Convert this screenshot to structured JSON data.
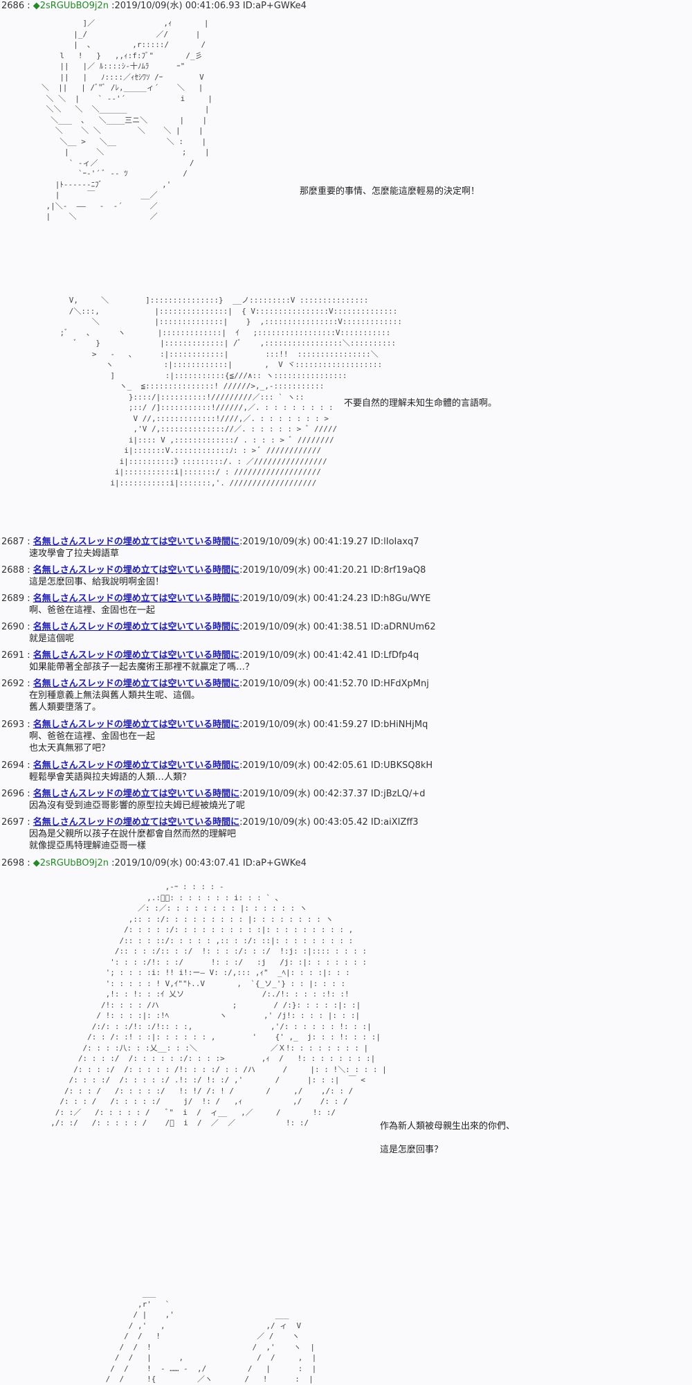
{
  "posts": [
    {
      "num": "2686",
      "trip": "◆2sRGUbBO9j2n",
      "date": "2019/10/09(水) 00:41:06.93",
      "id": "ID:aP+GWKe4",
      "body": []
    },
    {
      "num": "2687",
      "name": "名無しさんスレッドの埋め立ては空いている時間に",
      "date": "2019/10/09(水) 00:41:19.27",
      "id": "ID:lIoIaxq7",
      "body": [
        "速攻學會了拉夫姆語草"
      ]
    },
    {
      "num": "2688",
      "name": "名無しさんスレッドの埋め立ては空いている時間に",
      "date": "2019/10/09(水) 00:41:20.21",
      "id": "ID:8rf19aQ8",
      "body": [
        "這是怎麽回事、給我說明啊金固！"
      ]
    },
    {
      "num": "2689",
      "name": "名無しさんスレッドの埋め立ては空いている時間に",
      "date": "2019/10/09(水) 00:41:24.23",
      "id": "ID:h8Gu/WYE",
      "body": [
        "啊、爸爸在這裡、金固也在一起"
      ]
    },
    {
      "num": "2690",
      "name": "名無しさんスレッドの埋め立ては空いている時間に",
      "date": "2019/10/09(水) 00:41:38.51",
      "id": "ID:aDRNUm62",
      "body": [
        "就是這個呢"
      ]
    },
    {
      "num": "2691",
      "name": "名無しさんスレッドの埋め立ては空いている時間に",
      "date": "2019/10/09(水) 00:41:42.41",
      "id": "ID:LfDfp4q",
      "body": [
        "如果能帶著全部孩子一起去魔術王那裡不就贏定了嗎…？"
      ]
    },
    {
      "num": "2692",
      "name": "名無しさんスレッドの埋め立ては空いている時間に",
      "date": "2019/10/09(水) 00:41:52.70",
      "id": "ID:HFdXpMnj",
      "body": [
        "在別種意義上無法與舊人類共生呢、這個。",
        "舊人類要墮落了。"
      ]
    },
    {
      "num": "2693",
      "name": "名無しさんスレッドの埋め立ては空いている時間に",
      "date": "2019/10/09(水) 00:41:59.27",
      "id": "ID:bHiNHjMq",
      "body": [
        "啊、爸爸在這裡、金固也在一起",
        "也太天真無邪了吧？"
      ]
    },
    {
      "num": "2694",
      "name": "名無しさんスレッドの埋め立ては空いている時間に",
      "date": "2019/10/09(水) 00:42:05.61",
      "id": "ID:UBKSQ8kH",
      "body": [
        "輕鬆學會芙語與拉夫姆語的人類…人類？"
      ]
    },
    {
      "num": "2696",
      "name": "名無しさんスレッドの埋め立ては空いている時間に",
      "date": "2019/10/09(水) 00:42:37.37",
      "id": "ID:jBzLQ/+d",
      "body": [
        "因為沒有受到迪亞哥影響的原型拉夫姆已經被燒光了呢"
      ]
    },
    {
      "num": "2697",
      "name": "名無しさんスレッドの埋め立ては空いている時間に",
      "date": "2019/10/09(水) 00:43:05.42",
      "id": "ID:aiXIZff3",
      "body": [
        "因為是父親所以孩子在說什麼都會自然而然的理解吧",
        "就像提亞馬特理解迪亞哥一樣"
      ]
    },
    {
      "num": "2698",
      "trip": "◆2sRGUbBO9j2n",
      "date": "2019/10/09(水) 00:43:07.41",
      "id": "ID:aP+GWKe4",
      "body": []
    }
  ],
  "dialogue": {
    "line1": "那麼重要的事情、怎麼能這麼輕易的決定啊！",
    "line2": "不要自然的理解未知生命體的言語啊。",
    "line3a": "作為新人類被母親生出來的你們、",
    "line3b": "這是怎麼回事？"
  },
  "aa": {
    "art1": "            ]／               ,ｨ       |\n          |_/               ／/      |\n          |  ､         ,r:::::/       /\n       l   !   }   ,,ｨ:f:ﾌﾞ\"       /_彡\n       ||   |／ ﾙ::::ｼ-十ﾉﾑﾗ      ｰ\"\n       ||   |   ﾉ::::／ｨｾｼﾜｿ /ｰ        V\n   ＼  ||   | /ﾞ\"ﾞ /ﾚ,_____ィ´    ＼   |\n    ＼ ＼  |    ` ‐-'´            i     |\n    ＼＼   ＼  ＼______                 |\n     ＼___  ､   ＼____三ニ＼       |    |\n      ＼    ＼ ＼        ＼    ＼ |    |\n       ＼__ >   ＼__           ＼ :    |\n        |      ＼                 ;    |\n         ` ‐ィ／                    /\n           `ｰ-'´ ﾞ -- ﾂ            /\n      |ﾄ------ﾆﾌﾞ             ,'\n      |      ￣          __／\n    ,|＼-  ――   -  -´      ／\n    |    ＼                ／",
    "art2": "      V,     ＼        ]:::::::::::::::}  __ノ:::::::::V :::::::::::::::\n      /＼:::,            |:::::::::::::::|  { V::::::::::::::::V::::::::::::::\n           ＼            |::::::::::::::|    }  ,::::::::::::::::V:::::::::::::\n    ;ﾞ    ､      ヽ       |:::::::::::::|  ｲ   ;:::::::::::::::::V:::::::::::\n       ﾞ    }             |:::::::::::::| /ﾞ    ,:::::::::::::::::＼::::::::::\n           >   -   ､      :|::::::::::::|        :::!!  ::::::::::::::::＼\n              ヽ           :|::::::::::::|       ,  V ヾ:::::::::::::::::::\n               ]           :|:::::::::::{≦///∧:: ヽ::::::::::::::::\n                 ヽ_  ≦:::::::::::::::! //////>,_,-:::::::::::\n                   }::::/|::::::::::!/////////／::: ` ヽ::\n                   ;::/ /]:::::::::::!//////,／. : : : : : : : :\n                    V //,:::::::::::::!////,／. : : : : : : : >\n                    ,'V /,:::::::::::::://／. : : : : : > ﾞ /////\n                   i|:::: V ,:::::::::::::/ . : : : > ﾞ ////////\n                  i|:::::::V.::::::::::::ﾉ: : > ﾞ ////////////\n                 i|::::::::::》:::::::::/. : ／////////////////\n                i|:::::::::::i|:::::::/ : ///////////////////\n               i|:::::::::::i|:::::::,'. ///////////////////",
    "art3": "                              ,-ｰ : : : : -\n                          ,.:ﾞ／: : : : : : : i: : : ` ､\n                        ／: :／: : : : : : : : |: : : : : : ヽ\n                      ,:: : :/: : : : : : : : : |: : : : : : : : ヽ\n                     /: : : : :/: : : : : : : : : :|: : : : : : : : : ,\n                    /:: : : ::/: : : : : ,:: : :/: ::|: : : : : : : : :\n                   /:: : : :/:: : :/  !: : : :/: : :/  !:j: :|:::: : : : :\n                  ': : : :/!: : :/      !: : :/   :j   /j: :|: : : : : : :\n                 '; : : : :i: !! i!:ー― V: :/,::: ,ｨ\"  _ﾍ|: : : :|: : :\n                 ': : : : : ! V,ｲ\"\"ﾄ..V       ,  `{_ソ_'} : : |: : : :\n                 ,!: : !: : :ｲ 乂ソ                 /:./!: : : : :!: :!\n                /!: : : : /ハ                ;        / /:}: : : : :|: :|\n               / !: : : :|: :!ﾍ           ヽ        ,' /j!: : : : |: : :|\n              /:/: : :/!: :/!:: : :,                 ,'/: : : : : : !: : :|\n             /: : /: :! : :|: : : : : : ,        '    {' ,_  j: : : !: : : :|\n            /: : : :八: : :乂__: : :＼                ／Ｘ!: : : : : : : : |\n           /: : : :/  /: : : : : :/: : : :>        ,ｨ  /   !: : : : : : : :|\n          /: : : :/  /: : : : : /!: : : :/ : : /ハ      /     |: : !＼: : : : |\n         /: : : :/  /: : : : :/ .!: :/ !: :/ ,'       /      |: : :|  ￣ <\n        /: : : /   /: : : : :/   !: !/ /: ! /       /     ,/    ,/: : /\n       /: : : /   /: : : : :/     j/  !: /   ,ｨ           ,/    /: : /\n      /: :／   /: : : : : /    ﾞ\"  i  /  ィ__   ,／     /       !: :/\n     ,/: :/   /: : : : : /    /ﾞ  i  /  ／  ／           !: :/",
    "art4": "                         ___\n                        ,r'   `\n                       / |    ,'                      ___\n                      / ,'   ,                      ,/ ィ  V\n                     /  /   !                     ／ /    ヽ\n                    /  /  !                      /  ,'    ヽ  |\n                   /  /   |      ,                /  /     ,  |\n                  /  /    !  - …… -  ,/         /   |      :  |\n                 /  /     !{         ／ヽ       /   !      :  |"
  }
}
